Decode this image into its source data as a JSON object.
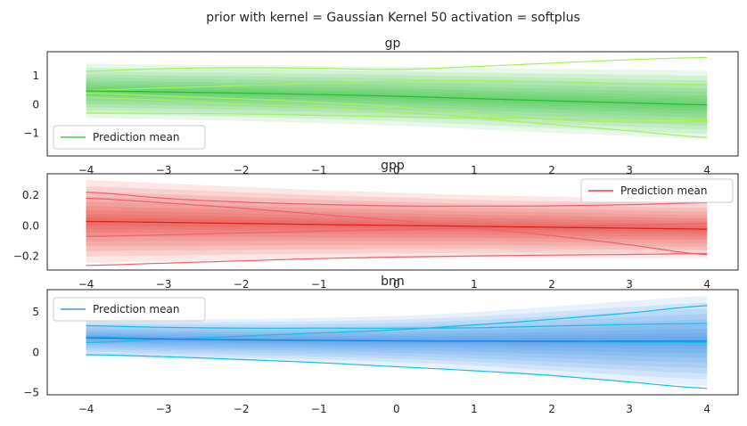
{
  "suptitle": "prior with kernel = Gaussian Kernel 50 activation = softplus",
  "chart_data": [
    {
      "type": "line",
      "title": "gp",
      "color": "#22c032",
      "sample_color": "#a6f05a",
      "legend_label": "Prediction mean",
      "legend_loc": "lower-left",
      "xlim": [
        -4.5,
        4.4
      ],
      "ylim": [
        -1.8,
        1.85
      ],
      "xticks": [
        -4,
        -3,
        -2,
        -1,
        0,
        1,
        2,
        3,
        4
      ],
      "yticks": [
        1,
        0,
        -1
      ],
      "x": [
        -4,
        -3,
        -2,
        -1,
        0,
        1,
        2,
        3,
        4
      ],
      "mean": [
        0.48,
        0.44,
        0.4,
        0.35,
        0.29,
        0.21,
        0.13,
        0.06,
        -0.01
      ],
      "band_halfwidth": [
        0.95,
        0.96,
        0.98,
        1.0,
        1.03,
        1.07,
        1.12,
        1.16,
        1.2
      ],
      "samples": [
        [
          1.17,
          1.26,
          1.29,
          1.27,
          1.23,
          1.33,
          1.45,
          1.57,
          1.65
        ],
        [
          0.5,
          0.58,
          0.66,
          0.74,
          0.82,
          0.84,
          0.8,
          0.74,
          0.7
        ],
        [
          0.25,
          0.15,
          0.02,
          -0.1,
          -0.26,
          -0.46,
          -0.7,
          -0.92,
          -1.15
        ],
        [
          -0.3,
          -0.31,
          -0.33,
          -0.38,
          -0.43,
          -0.47,
          -0.5,
          -0.52,
          -0.54
        ],
        [
          0.4,
          0.3,
          0.2,
          0.08,
          -0.08,
          -0.3,
          -0.52,
          -0.62,
          -0.6
        ]
      ]
    },
    {
      "type": "line",
      "title": "gpp",
      "color": "#e0201a",
      "sample_color": "#f06070",
      "legend_label": "Prediction mean",
      "legend_loc": "upper-right",
      "xlim": [
        -4.5,
        4.4
      ],
      "ylim": [
        -0.29,
        0.34
      ],
      "xticks": [
        -4,
        -3,
        -2,
        -1,
        0,
        1,
        2,
        3,
        4
      ],
      "yticks": [
        0.2,
        0.0,
        -0.2
      ],
      "x": [
        -4,
        -3,
        -2,
        -1,
        0,
        1,
        2,
        3,
        4
      ],
      "mean": [
        0.028,
        0.022,
        0.015,
        0.008,
        0.002,
        -0.004,
        -0.01,
        -0.016,
        -0.022
      ],
      "band_halfwidth": [
        0.27,
        0.255,
        0.24,
        0.225,
        0.215,
        0.205,
        0.2,
        0.195,
        0.19
      ],
      "samples": [
        [
          0.22,
          0.18,
          0.155,
          0.14,
          0.13,
          0.128,
          0.13,
          0.138,
          0.15
        ],
        [
          0.18,
          0.15,
          0.115,
          0.075,
          0.035,
          -0.015,
          -0.065,
          -0.125,
          -0.19
        ],
        [
          -0.07,
          -0.06,
          -0.048,
          -0.036,
          -0.026,
          -0.016,
          -0.005,
          0.005,
          0.015
        ],
        [
          -0.26,
          -0.245,
          -0.23,
          -0.215,
          -0.205,
          -0.198,
          -0.192,
          -0.188,
          -0.182
        ]
      ]
    },
    {
      "type": "line",
      "title": "bnn",
      "color": "#1a7ee8",
      "sample_color": "#10c0e8",
      "legend_label": "Prediction mean",
      "legend_loc": "upper-left",
      "xlim": [
        -4.5,
        4.4
      ],
      "ylim": [
        -5.3,
        7.8
      ],
      "xticks": [
        -4,
        -3,
        -2,
        -1,
        0,
        1,
        2,
        3,
        4
      ],
      "yticks": [
        5,
        0,
        -5
      ],
      "x": [
        -4,
        -3,
        -2,
        -1,
        0,
        1,
        2,
        3,
        4
      ],
      "mean": [
        1.8,
        1.65,
        1.55,
        1.48,
        1.42,
        1.4,
        1.38,
        1.38,
        1.4
      ],
      "band_halfwidth": [
        2.4,
        2.5,
        2.6,
        2.8,
        3.1,
        3.6,
        4.3,
        5.0,
        5.6
      ],
      "samples": [
        [
          3.3,
          3.1,
          3.0,
          3.0,
          3.0,
          3.05,
          3.25,
          3.45,
          3.6
        ],
        [
          1.2,
          1.6,
          2.0,
          2.4,
          2.8,
          3.4,
          4.1,
          4.9,
          5.8
        ],
        [
          -0.3,
          -0.55,
          -0.9,
          -1.3,
          -1.8,
          -2.3,
          -2.9,
          -3.7,
          -4.5
        ],
        [
          1.9,
          1.7,
          1.55,
          1.45,
          1.4,
          1.35,
          1.3,
          1.25,
          1.2
        ]
      ]
    }
  ]
}
